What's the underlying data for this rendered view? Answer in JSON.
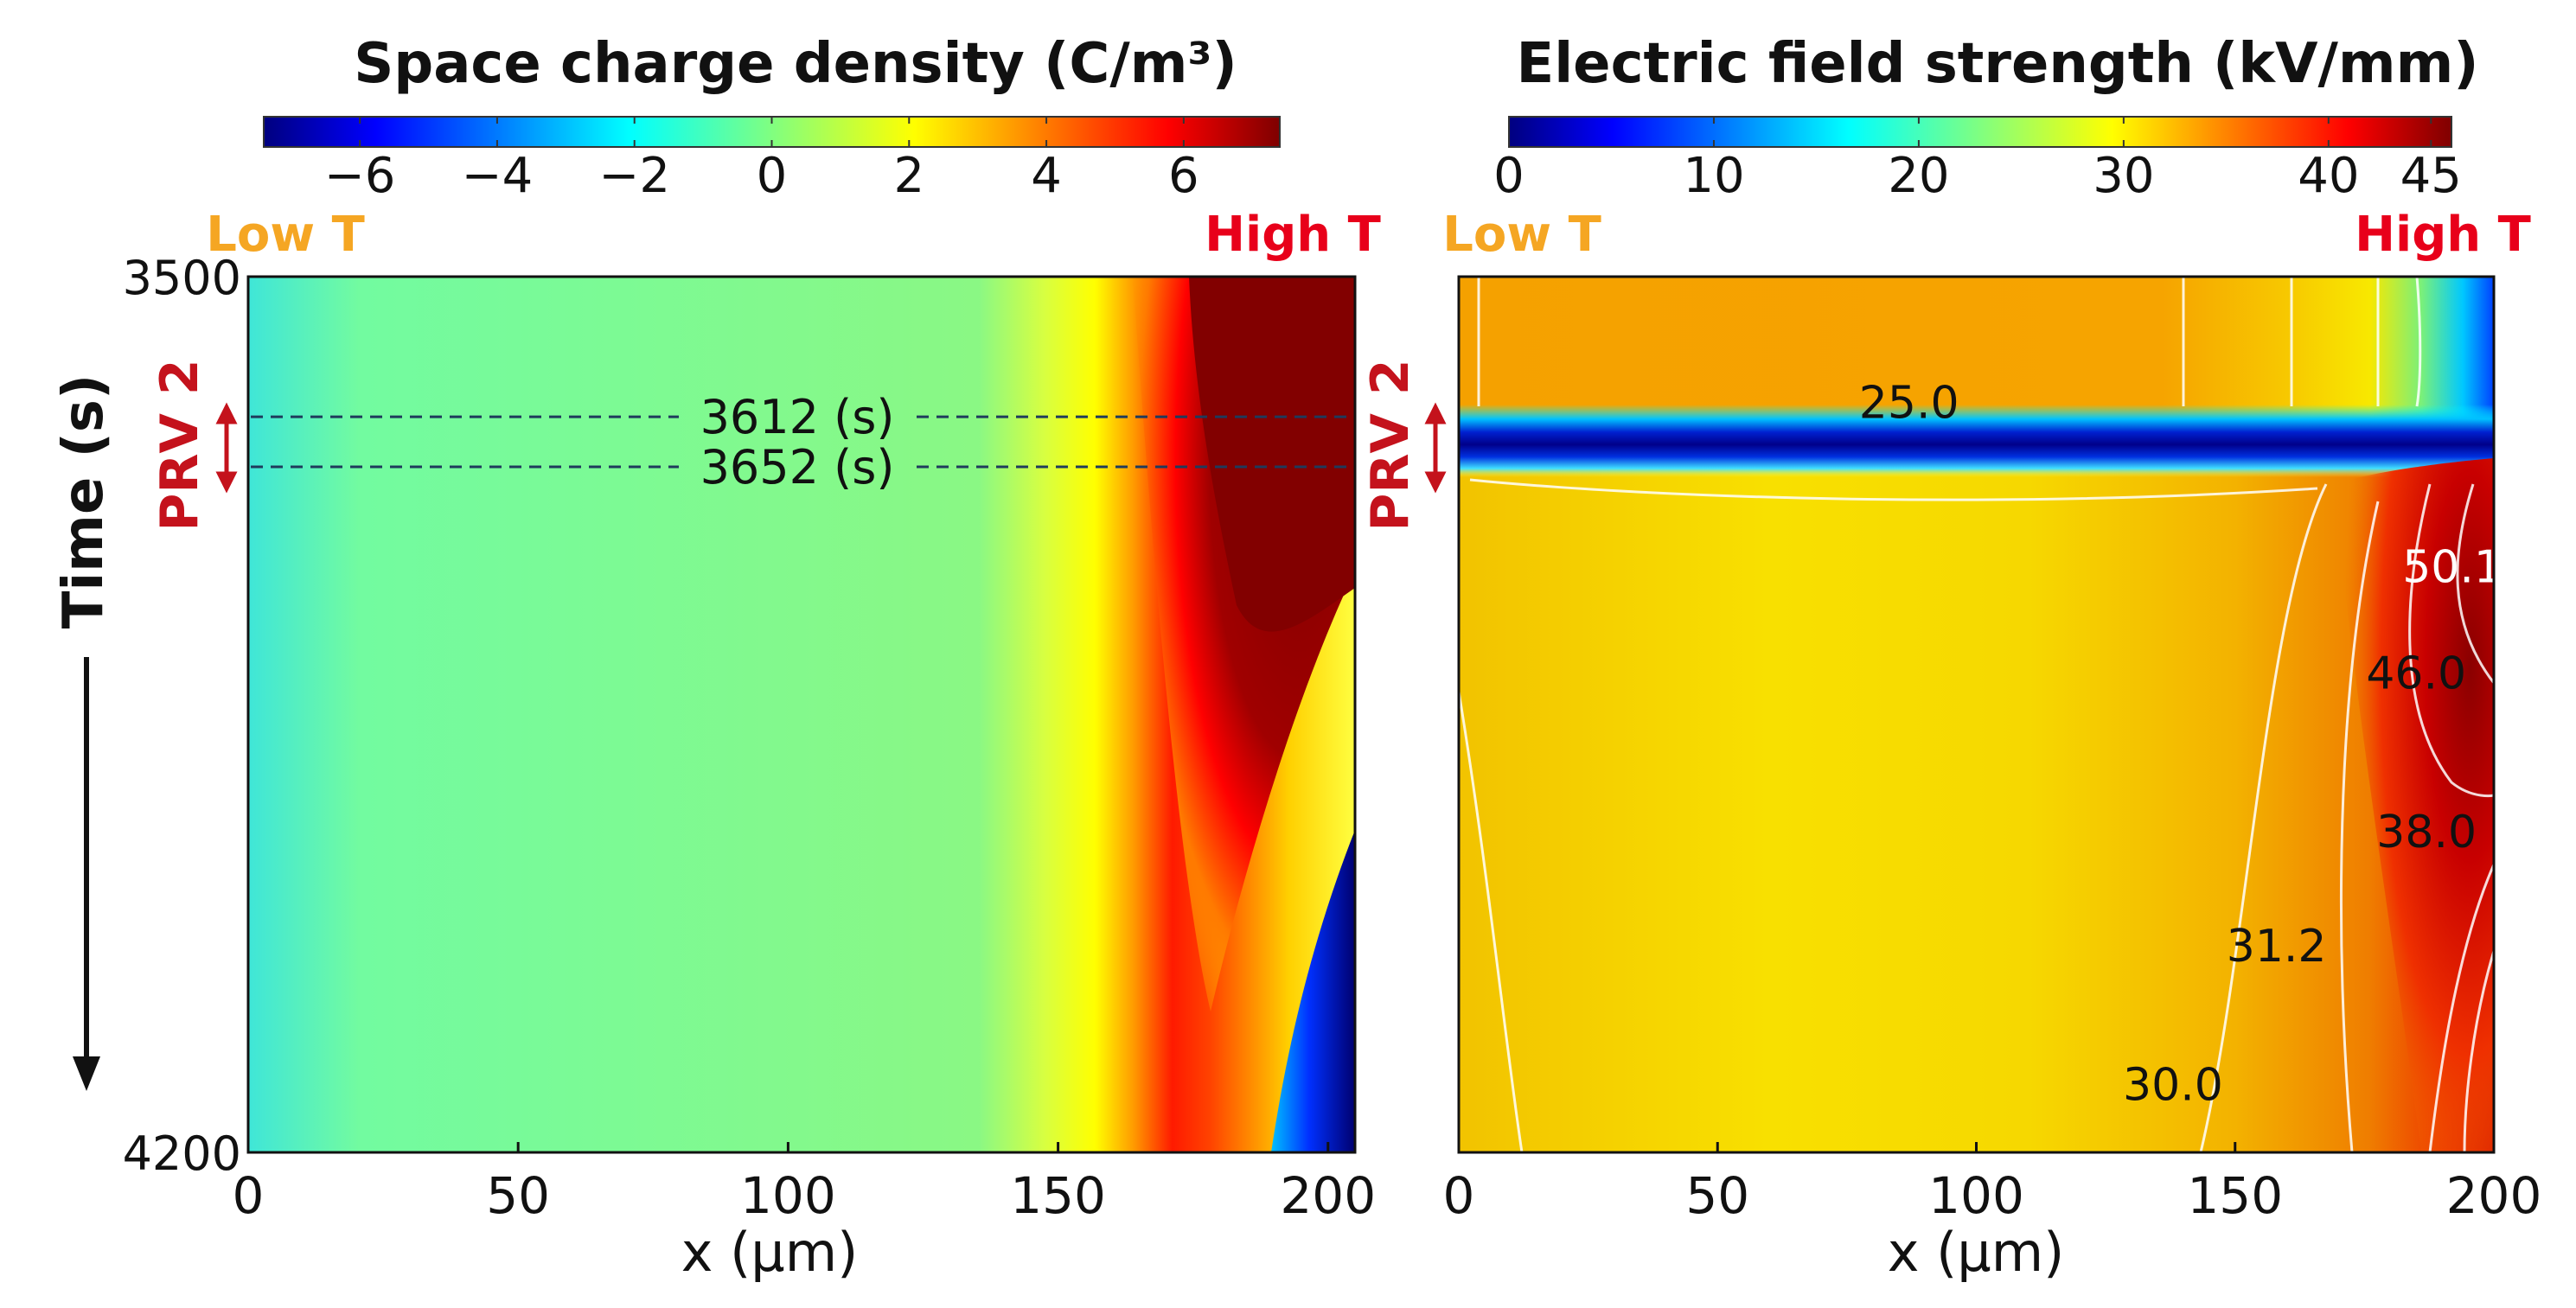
{
  "chart_data": [
    {
      "type": "heatmap",
      "title": "Space charge density (C/m³)",
      "xlabel": "x (μm)",
      "ylabel": "Time (s)",
      "xlim": [
        0,
        205
      ],
      "ylim": [
        3500,
        4200
      ],
      "x_ticks": [
        "0",
        "50",
        "100",
        "150",
        "200"
      ],
      "y_ticks": [
        "3500",
        "4200"
      ],
      "colorbar": {
        "min": -7.4,
        "max": 7.4,
        "ticks": [
          "−6",
          "−4",
          "−2",
          "0",
          "2",
          "4",
          "6"
        ],
        "tick_values": [
          -6,
          -4,
          -2,
          0,
          2,
          4,
          6
        ]
      },
      "side_labels": {
        "left": "Low T",
        "right": "High T"
      },
      "interval_label": "PRV 2",
      "markers": [
        {
          "time": 3612,
          "label": "3612 (s)"
        },
        {
          "time": 3652,
          "label": "3652 (s)"
        }
      ]
    },
    {
      "type": "heatmap",
      "title": "Electric field strength (kV/mm)",
      "xlabel": "x (μm)",
      "xlim": [
        0,
        200
      ],
      "x_ticks": [
        "0",
        "50",
        "100",
        "150",
        "200"
      ],
      "colorbar": {
        "min": 0,
        "max": 46,
        "ticks": [
          "0",
          "10",
          "20",
          "30",
          "40",
          "45"
        ],
        "tick_values": [
          0,
          10,
          20,
          30,
          40,
          45
        ]
      },
      "side_labels": {
        "left": "Low T",
        "right": "High T"
      },
      "interval_label": "PRV 2",
      "contour_labels": [
        {
          "text": "25.0",
          "x": 87,
          "time": 3600,
          "color": "#111111"
        },
        {
          "text": "50.1",
          "x": 192,
          "time": 3731,
          "color": "#ffffff"
        },
        {
          "text": "46.0",
          "x": 185,
          "time": 3816,
          "color": "#111111"
        },
        {
          "text": "38.0",
          "x": 187,
          "time": 3943,
          "color": "#111111"
        },
        {
          "text": "31.2",
          "x": 158,
          "time": 4034,
          "color": "#111111"
        },
        {
          "text": "30.0",
          "x": 138,
          "time": 4145,
          "color": "#111111"
        }
      ]
    }
  ],
  "colors": {
    "low_t": "#f5a623",
    "high_t": "#e8001a",
    "prv": "#c4121c",
    "marker_line": "#1f3b5c"
  }
}
